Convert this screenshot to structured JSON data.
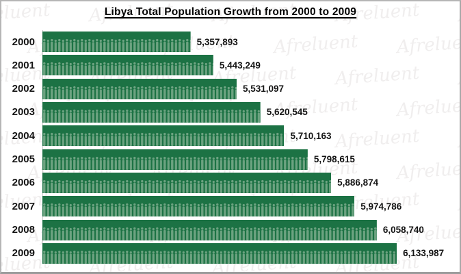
{
  "title": "Libya Total Population Growth from 2000 to 2009",
  "watermark": {
    "text": "Afreluent"
  },
  "colors": {
    "bar_green": "#1c7244",
    "figure_green": "#6da381",
    "label_black": "#141414",
    "frame_border": "#b5b5b5",
    "axis_line": "#c9c9c9"
  },
  "chart_data": {
    "type": "bar",
    "orientation": "horizontal",
    "title": "Libya Total Population Growth from 2000 to 2009",
    "categories": [
      "2000",
      "2001",
      "2002",
      "2003",
      "2004",
      "2005",
      "2006",
      "2007",
      "2008",
      "2009"
    ],
    "values": [
      5357893,
      5443249,
      5531097,
      5620545,
      5710163,
      5798615,
      5886874,
      5974786,
      6058740,
      6133987
    ],
    "value_labels": [
      "5,357,893",
      "5,443,249",
      "5,531,097",
      "5,620,545",
      "5,710,163",
      "5,798,615",
      "5,886,874",
      "5,974,786",
      "6,058,740",
      "6,133,987"
    ],
    "xlabel": "",
    "ylabel": "",
    "axis_range": [
      4800000,
      6350000
    ],
    "grid": false,
    "legend": false,
    "bar_pattern": "people-figures"
  }
}
